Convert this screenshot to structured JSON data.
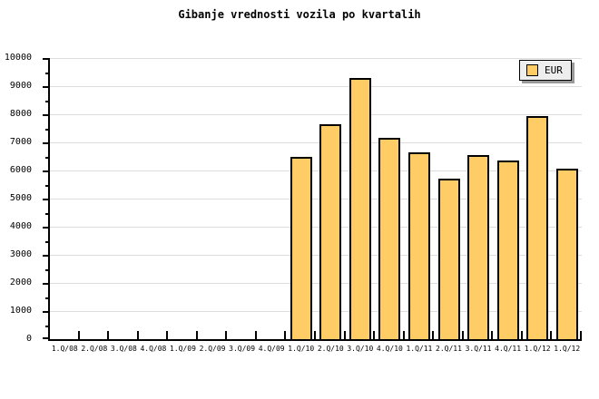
{
  "title": "Gibanje vrednosti vozila po kvartalih",
  "legend": {
    "label": "EUR",
    "swatch_color": "#FFCC66",
    "background": "#EEEEEE",
    "shadow_color": "#999999",
    "position": "top-right"
  },
  "colors": {
    "background": "#FFFFFF",
    "bar_fill": "#FFCC66",
    "bar_border": "#000000",
    "gridline": "#DDDDDD",
    "axis": "#000000",
    "text": "#000000"
  },
  "chart_data": {
    "type": "bar",
    "title": "Gibanje vrednosti vozila po kvartalih",
    "xlabel": "",
    "ylabel": "",
    "categories": [
      "1.Q/08",
      "2.Q/08",
      "3.Q/08",
      "4.Q/08",
      "1.Q/09",
      "2.Q/09",
      "3.Q/09",
      "4.Q/09",
      "1.Q/10",
      "2.Q/10",
      "3.Q/10",
      "4.Q/10",
      "1.Q/11",
      "2.Q/11",
      "3.Q/11",
      "4.Q/11",
      "1.Q/12",
      "1.Q/12"
    ],
    "series": [
      {
        "name": "EUR",
        "values": [
          null,
          null,
          null,
          null,
          null,
          null,
          null,
          null,
          6500,
          7650,
          9300,
          7150,
          6650,
          5700,
          6550,
          6350,
          7950,
          6050
        ]
      }
    ],
    "ylim": [
      0,
      10000
    ],
    "ytick_interval": 1000,
    "ytick_minor_interval": 500,
    "grid": "horizontal",
    "legend_position": "top-right"
  }
}
